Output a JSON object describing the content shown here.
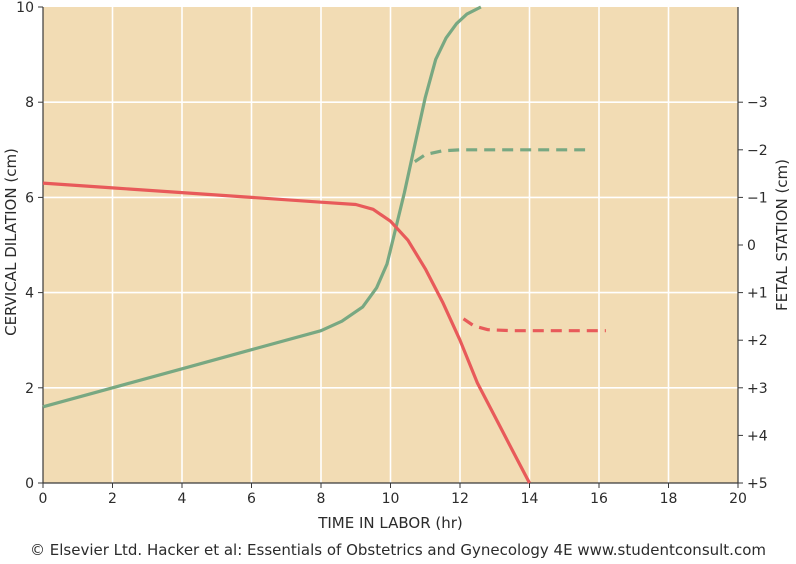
{
  "chart_data": {
    "type": "line",
    "title": "",
    "xlabel": "TIME IN LABOR (hr)",
    "ylabel": "CERVICAL DILATION (cm)",
    "y2label": "FETAL  STATION (cm)",
    "xlim": [
      0,
      20
    ],
    "ylim": [
      0,
      10
    ],
    "y2lim": [
      5,
      -5
    ],
    "x_ticks": [
      0,
      2,
      4,
      6,
      8,
      10,
      12,
      14,
      16,
      18,
      20
    ],
    "y_ticks": [
      0,
      2,
      4,
      6,
      8,
      10
    ],
    "y2_ticks": [
      {
        "value": 5,
        "label": "+5"
      },
      {
        "value": 4,
        "label": "+4"
      },
      {
        "value": 3,
        "label": "+3"
      },
      {
        "value": 2,
        "label": "+2"
      },
      {
        "value": 1,
        "label": "+1"
      },
      {
        "value": 0,
        "label": "0"
      },
      {
        "value": -1,
        "label": "−1"
      },
      {
        "value": -2,
        "label": "−2"
      },
      {
        "value": -3,
        "label": "−3"
      }
    ],
    "grid": true,
    "plot_background": "#f2dcb4",
    "grid_color": "#ffffff",
    "series": [
      {
        "axis": "left",
        "color": "#78a882",
        "style": "solid",
        "x": [
          0,
          2,
          4,
          6,
          8,
          8.6,
          9.2,
          9.6,
          9.9,
          10.1,
          10.4,
          10.7,
          11.0,
          11.3,
          11.6,
          11.9,
          12.2,
          12.6
        ],
        "y": [
          1.6,
          2.0,
          2.4,
          2.8,
          3.2,
          3.4,
          3.7,
          4.1,
          4.6,
          5.2,
          6.1,
          7.1,
          8.1,
          8.9,
          9.35,
          9.65,
          9.85,
          10.0
        ]
      },
      {
        "axis": "left",
        "color": "#78a882",
        "style": "dashed",
        "x": [
          10.7,
          11.0,
          11.5,
          12.0,
          13.0,
          14.0,
          15.0,
          15.6
        ],
        "y": [
          6.75,
          6.9,
          6.98,
          7.0,
          7.0,
          7.0,
          7.0,
          7.0
        ]
      },
      {
        "axis": "right",
        "color": "#e85a5a",
        "style": "solid",
        "x": [
          0,
          2,
          4,
          6,
          8,
          9.0,
          9.5,
          10.0,
          10.5,
          11.0,
          11.5,
          12.0,
          12.5,
          13.0,
          13.5,
          14.0
        ],
        "y": [
          -1.3,
          -1.2,
          -1.1,
          -1.0,
          -0.9,
          -0.85,
          -0.75,
          -0.5,
          -0.1,
          0.5,
          1.2,
          2.0,
          2.9,
          3.6,
          4.3,
          5.0
        ]
      },
      {
        "axis": "right",
        "color": "#e85a5a",
        "style": "dashed",
        "x": [
          12.1,
          12.4,
          12.8,
          13.5,
          14.5,
          15.5,
          16.2
        ],
        "y": [
          1.55,
          1.7,
          1.78,
          1.8,
          1.8,
          1.8,
          1.8
        ]
      }
    ]
  },
  "footer": {
    "copyright": "© Elsevier Ltd. Hacker et al: Essentials of Obstetrics and Gynecology 4E www.studentconsult.com"
  }
}
